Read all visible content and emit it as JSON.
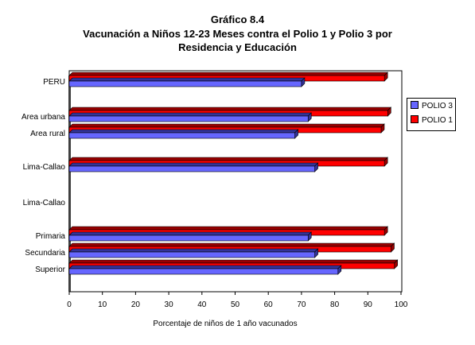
{
  "title": {
    "line1": "Gráfico 8.4",
    "line2": "Vacunación a Niños 12-23 Meses contra el Polio 1 y Polio 3 por",
    "line3": "Residencia y Educación"
  },
  "chart_data": {
    "type": "bar",
    "orientation": "horizontal",
    "categories": [
      "PERU",
      "Area urbana",
      "Area rural",
      "Lima-Callao",
      "Lima-Callao",
      "Primaria",
      "Secundaria",
      "Superior"
    ],
    "series": [
      {
        "name": "POLIO 1",
        "color": "#ff0000",
        "values": [
          95,
          96,
          94,
          95,
          null,
          95,
          97,
          98
        ]
      },
      {
        "name": "POLIO 3",
        "color": "#6666ff",
        "values": [
          70,
          72,
          68,
          74,
          null,
          72,
          74,
          81
        ]
      }
    ],
    "xlabel": "Porcentaje de niños de 1 año vacunados",
    "xlim": [
      0,
      100
    ],
    "xticks": [
      "0",
      "10",
      "20",
      "30",
      "40",
      "50",
      "60",
      "70",
      "80",
      "90",
      "100"
    ],
    "grid": false,
    "legend": "right",
    "legend_order": [
      "POLIO 3",
      "POLIO 1"
    ],
    "plot_background": "#ffffff",
    "axis_color": "#808080"
  }
}
